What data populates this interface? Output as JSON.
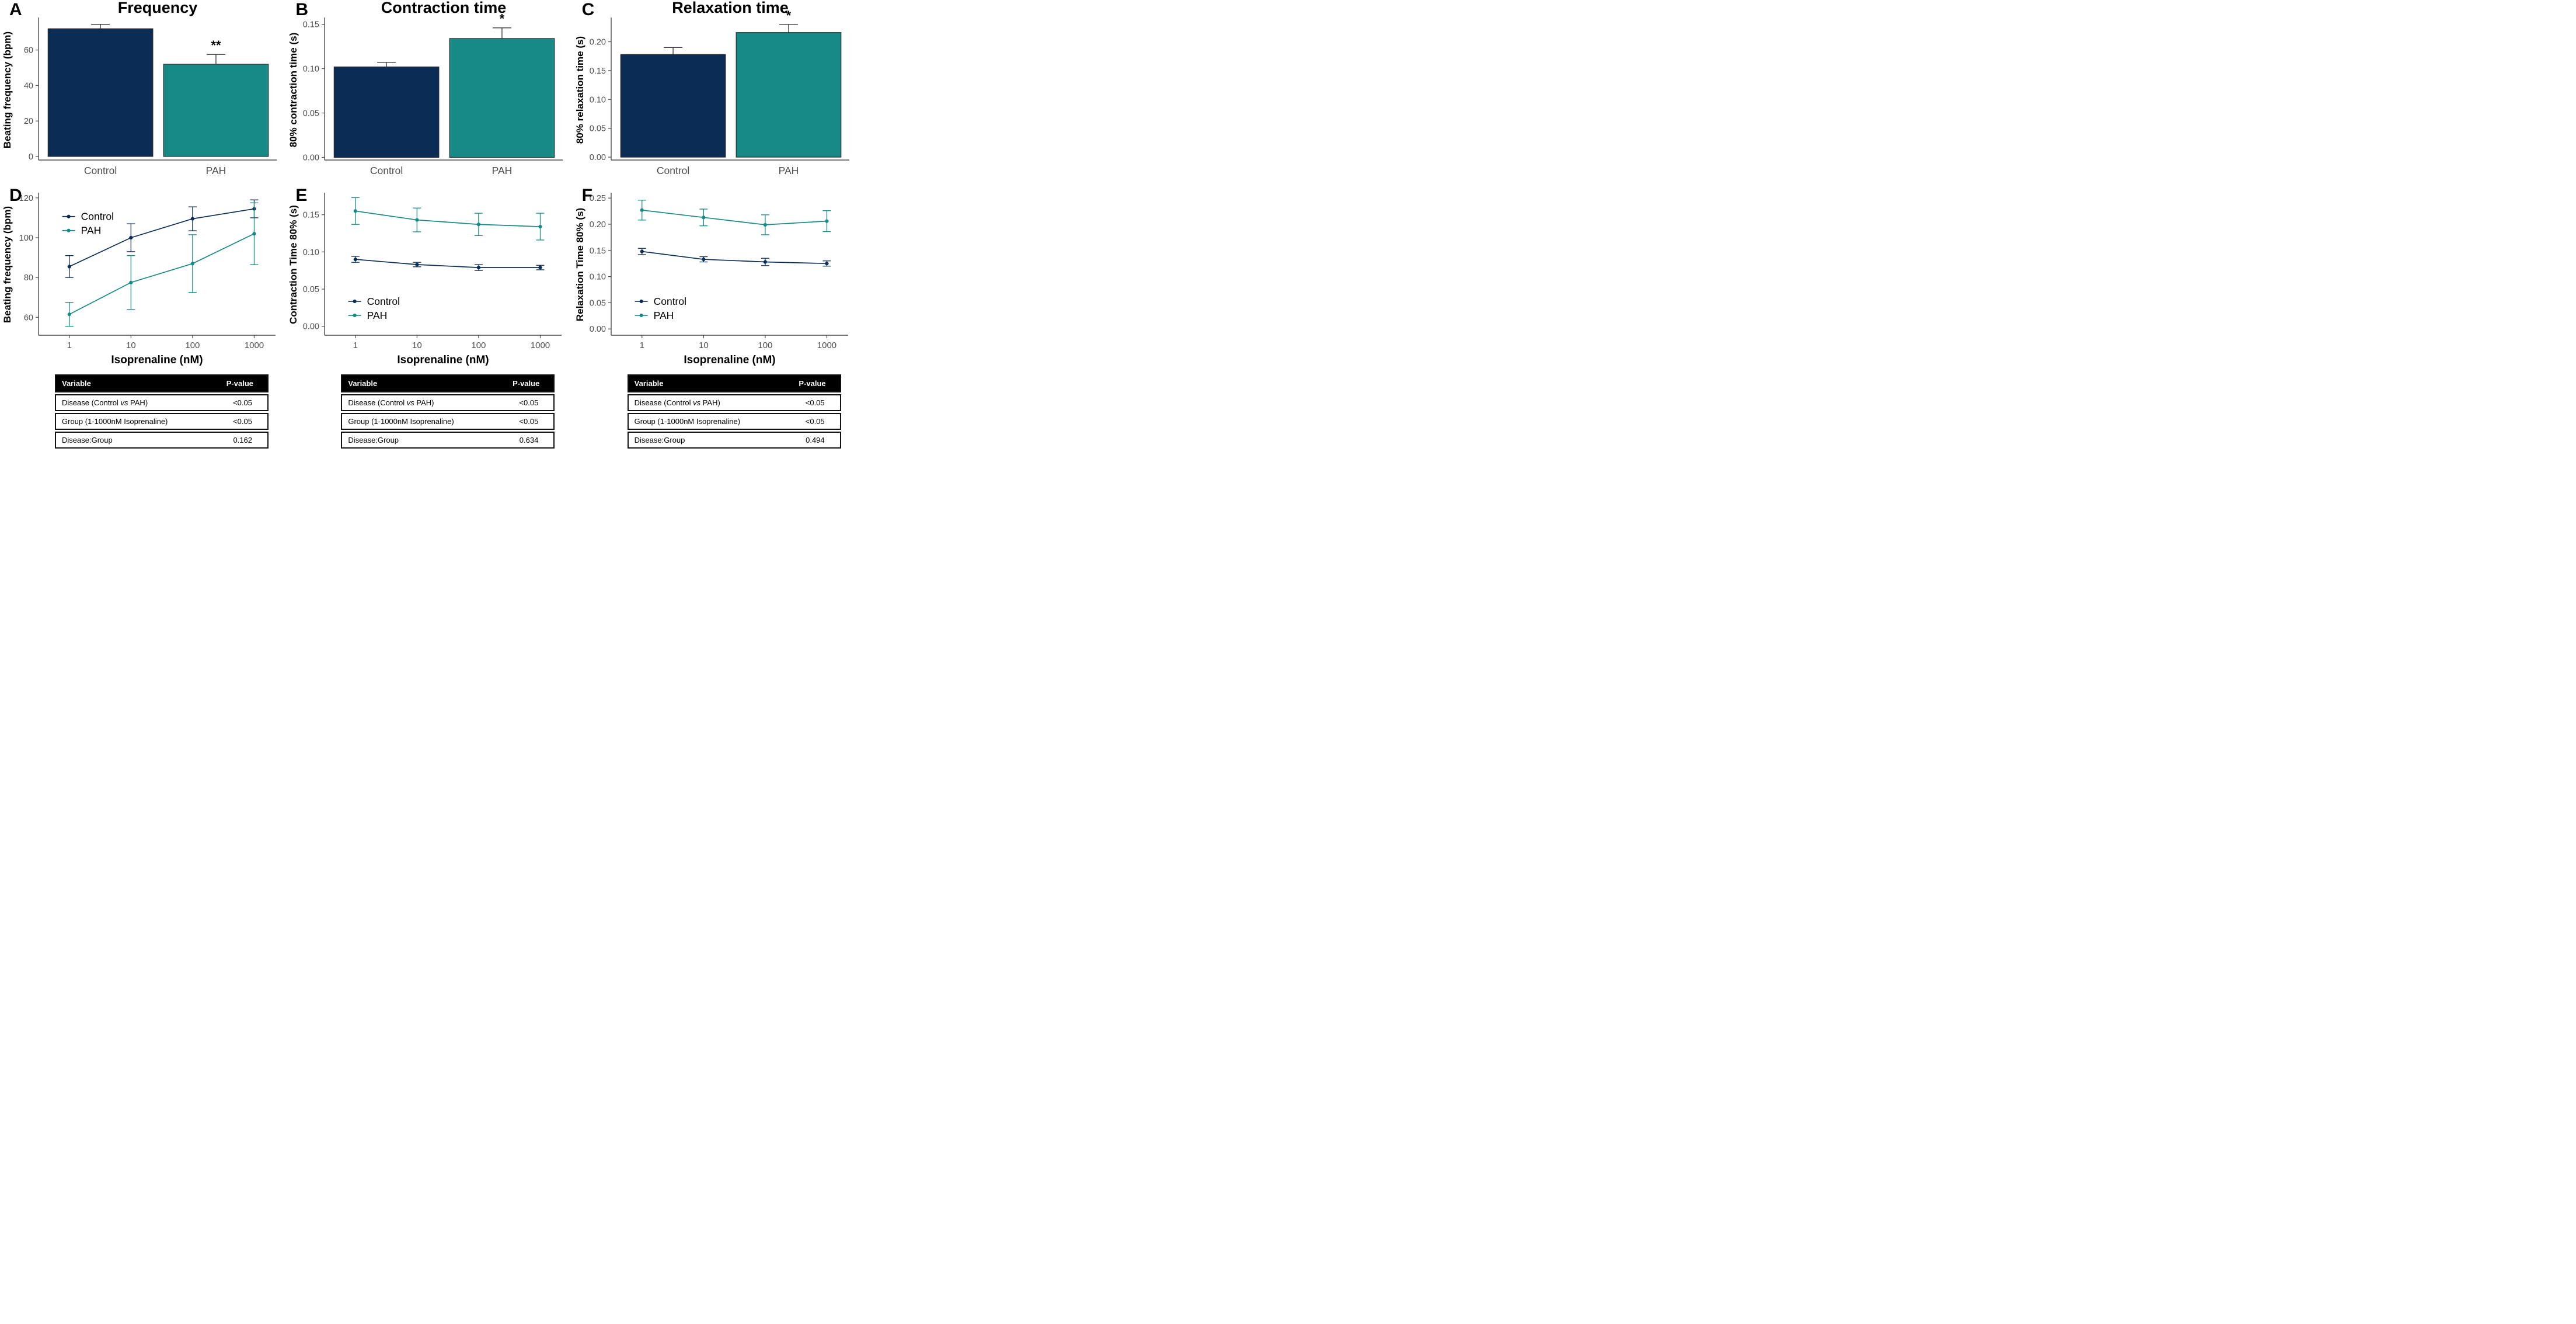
{
  "colors": {
    "control": "#0b2d55",
    "pah": "#178986",
    "axis": "#4a4a4a",
    "tick_text": "#4d4d4d",
    "error_bar": "#333333",
    "bar_stroke": "#2b2b2b",
    "text": "#000000",
    "table_header_bg": "#000000",
    "table_header_text": "#ffffff",
    "background": "#ffffff"
  },
  "chart_data": [
    {
      "panel_label": "A",
      "type": "bar",
      "title": "Frequency",
      "ylabel": "Beating frequency (bpm)",
      "categories": [
        "Control",
        "PAH"
      ],
      "values": [
        72,
        52
      ],
      "errors_up": [
        2.5,
        5.5
      ],
      "significance": [
        "",
        "**"
      ],
      "ylim": [
        -2,
        77
      ],
      "yticks": [
        0,
        20,
        40,
        60
      ],
      "ytick_labels": [
        "0",
        "20",
        "40",
        "60"
      ],
      "series_colors": [
        "control",
        "pah"
      ]
    },
    {
      "panel_label": "B",
      "type": "bar",
      "title": "Contraction time",
      "ylabel": "80% contraction time (s)",
      "categories": [
        "Control",
        "PAH"
      ],
      "values": [
        0.102,
        0.134
      ],
      "errors_up": [
        0.005,
        0.012
      ],
      "significance": [
        "",
        "*"
      ],
      "ylim": [
        -0.003,
        0.155
      ],
      "yticks": [
        0,
        0.05,
        0.1,
        0.15
      ],
      "ytick_labels": [
        "0.00",
        "0.05",
        "0.10",
        "0.15"
      ],
      "series_colors": [
        "control",
        "pah"
      ]
    },
    {
      "panel_label": "C",
      "type": "bar",
      "title": "Relaxation time",
      "ylabel": "80% relaxation time (s)",
      "categories": [
        "Control",
        "PAH"
      ],
      "values": [
        0.178,
        0.216
      ],
      "errors_up": [
        0.012,
        0.014
      ],
      "significance": [
        "",
        "*"
      ],
      "ylim": [
        -0.005,
        0.238
      ],
      "yticks": [
        0,
        0.05,
        0.1,
        0.15,
        0.2
      ],
      "ytick_labels": [
        "0.00",
        "0.05",
        "0.10",
        "0.15",
        "0.20"
      ],
      "series_colors": [
        "control",
        "pah"
      ]
    },
    {
      "panel_label": "D",
      "type": "line",
      "xlabel": "Isoprenaline (nM)",
      "ylabel": "Beating frequency (bpm)",
      "x": [
        1,
        10,
        100,
        1000
      ],
      "xtick_labels": [
        "1",
        "10",
        "100",
        "1000"
      ],
      "series": [
        {
          "name": "Control",
          "color": "control",
          "values": [
            85.5,
            100,
            109.5,
            114.5
          ],
          "errors": [
            5.5,
            7,
            6,
            4.5
          ]
        },
        {
          "name": "PAH",
          "color": "pah",
          "values": [
            61.5,
            77.5,
            87,
            102
          ],
          "errors": [
            6,
            13.5,
            14.5,
            15.5
          ]
        }
      ],
      "ylim": [
        51,
        122
      ],
      "yticks": [
        60,
        80,
        100,
        120
      ],
      "ytick_labels": [
        "60",
        "80",
        "100",
        "120"
      ],
      "legend": {
        "position": "top-left",
        "labels": [
          "Control",
          "PAH"
        ]
      }
    },
    {
      "panel_label": "E",
      "type": "line",
      "xlabel": "Isoprenaline (nM)",
      "ylabel": "Contraction Time 80% (s)",
      "x": [
        1,
        10,
        100,
        1000
      ],
      "xtick_labels": [
        "1",
        "10",
        "100",
        "1000"
      ],
      "series": [
        {
          "name": "Control",
          "color": "control",
          "values": [
            0.09,
            0.083,
            0.079,
            0.079
          ],
          "errors": [
            0.004,
            0.003,
            0.004,
            0.003
          ]
        },
        {
          "name": "PAH",
          "color": "pah",
          "values": [
            0.155,
            0.143,
            0.137,
            0.134
          ],
          "errors": [
            0.018,
            0.016,
            0.015,
            0.018
          ]
        }
      ],
      "ylim": [
        -0.012,
        0.178
      ],
      "yticks": [
        0,
        0.05,
        0.1,
        0.15
      ],
      "ytick_labels": [
        "0.00",
        "0.05",
        "0.10",
        "0.15"
      ],
      "legend": {
        "position": "bottom-left",
        "labels": [
          "Control",
          "PAH"
        ]
      }
    },
    {
      "panel_label": "F",
      "type": "line",
      "xlabel": "Isoprenaline (nM)",
      "ylabel": "Relaxation Time 80% (s)",
      "x": [
        1,
        10,
        100,
        1000
      ],
      "xtick_labels": [
        "1",
        "10",
        "100",
        "1000"
      ],
      "series": [
        {
          "name": "Control",
          "color": "control",
          "values": [
            0.148,
            0.133,
            0.128,
            0.125
          ],
          "errors": [
            0.006,
            0.005,
            0.007,
            0.005
          ]
        },
        {
          "name": "PAH",
          "color": "pah",
          "values": [
            0.227,
            0.213,
            0.199,
            0.206
          ],
          "errors": [
            0.019,
            0.016,
            0.019,
            0.02
          ]
        }
      ],
      "ylim": [
        -0.012,
        0.258
      ],
      "yticks": [
        0,
        0.05,
        0.1,
        0.15,
        0.2,
        0.25
      ],
      "ytick_labels": [
        "0.00",
        "0.05",
        "0.10",
        "0.15",
        "0.20",
        "0.25"
      ],
      "legend": {
        "position": "bottom-left",
        "labels": [
          "Control",
          "PAH"
        ]
      }
    }
  ],
  "tables": [
    {
      "columns": [
        "Variable",
        "P-value"
      ],
      "rows": [
        [
          "Disease (Control vs PAH)",
          "<0.05"
        ],
        [
          "Group (1-1000nM Isoprenaline)",
          "<0.05"
        ],
        [
          "Disease:Group",
          "0.162"
        ]
      ]
    },
    {
      "columns": [
        "Variable",
        "P-value"
      ],
      "rows": [
        [
          "Disease (Control vs PAH)",
          "<0.05"
        ],
        [
          "Group (1-1000nM Isoprenaline)",
          "<0.05"
        ],
        [
          "Disease:Group",
          "0.634"
        ]
      ]
    },
    {
      "columns": [
        "Variable",
        "P-value"
      ],
      "rows": [
        [
          "Disease (Control vs PAH)",
          "<0.05"
        ],
        [
          "Group (1-1000nM Isoprenaline)",
          "<0.05"
        ],
        [
          "Disease:Group",
          "0.494"
        ]
      ]
    }
  ]
}
